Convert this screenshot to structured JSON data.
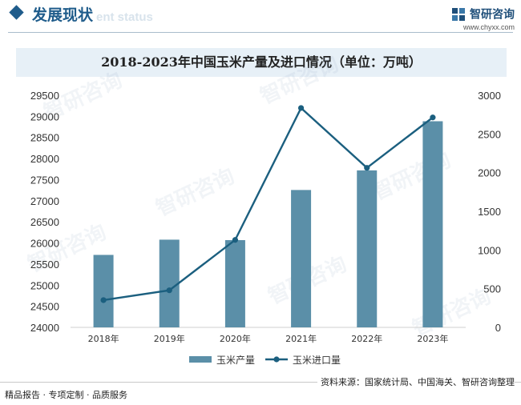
{
  "header": {
    "section_title": "发展现状",
    "section_subtitle": "ent status",
    "brand_name": "智研咨询",
    "brand_url": "www.chyxx.com"
  },
  "watermark_text": "智研咨询",
  "chart_data": {
    "type": "bar+line",
    "title": "2018-2023年中国玉米产量及进口情况（单位：万吨）",
    "categories": [
      "2018年",
      "2019年",
      "2020年",
      "2021年",
      "2022年",
      "2023年"
    ],
    "series": [
      {
        "name": "玉米产量",
        "type": "bar",
        "axis": "left",
        "values": [
          25717,
          26078,
          26067,
          27255,
          27720,
          28884
        ],
        "color": "#5b8fa8"
      },
      {
        "name": "玉米进口量",
        "type": "line",
        "axis": "right",
        "values": [
          352,
          479,
          1130,
          2835,
          2062,
          2713
        ],
        "color": "#1b5f7f"
      }
    ],
    "left_axis": {
      "min": 24000,
      "max": 29500,
      "ticks": [
        24000,
        24500,
        25000,
        25500,
        26000,
        26500,
        27000,
        27500,
        28000,
        28500,
        29000,
        29500
      ]
    },
    "right_axis": {
      "min": 0,
      "max": 3000,
      "ticks": [
        0,
        500,
        1000,
        1500,
        2000,
        2500,
        3000
      ]
    },
    "legend_position": "bottom",
    "grid": false
  },
  "footer": {
    "source": "资料来源：国家统计局、中国海关、智研咨询整理",
    "slogan": "精品报告 · 专项定制 · 品质服务"
  }
}
